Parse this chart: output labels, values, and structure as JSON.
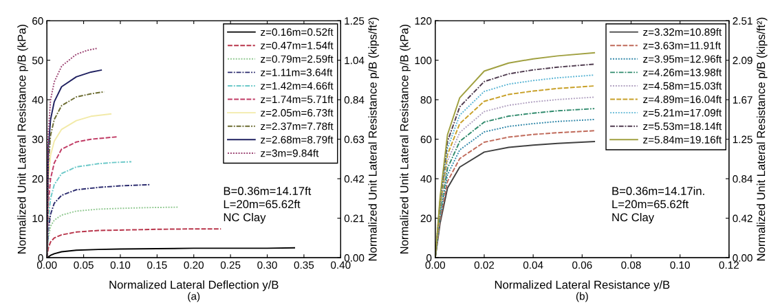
{
  "chart_data": [
    {
      "type": "line",
      "xlabel": "Normalized Lateral Deflection y/B",
      "ylabel": "Normalized Unit Lateral Resistance p/B (kPa)",
      "y2label": "Normalized Unit Lateral Resistance p/B (kips/ft²)",
      "xlim": [
        0,
        0.4
      ],
      "xticks": [
        {
          "value": 0,
          "label": "0.00"
        },
        {
          "value": 0.05,
          "label": "0.05"
        },
        {
          "value": 0.1,
          "label": "0.10"
        },
        {
          "value": 0.15,
          "label": "0.15"
        },
        {
          "value": 0.2,
          "label": "0.20"
        },
        {
          "value": 0.25,
          "label": "0.25"
        },
        {
          "value": 0.3,
          "label": "0.30"
        },
        {
          "value": 0.35,
          "label": "0.35"
        },
        {
          "value": 0.4,
          "label": "0.40"
        }
      ],
      "ylim": [
        0,
        60
      ],
      "yticks": [
        0,
        10,
        20,
        30,
        40,
        50,
        60
      ],
      "y2lim": [
        0,
        1.2531
      ],
      "y2ticks": [
        {
          "value": 0,
          "label": "0.00"
        },
        {
          "value": 0.2089,
          "label": "0.21"
        },
        {
          "value": 0.4177,
          "label": "0.42"
        },
        {
          "value": 0.6266,
          "label": "0.63"
        },
        {
          "value": 0.8354,
          "label": "0.84"
        },
        {
          "value": 1.0443,
          "label": "1.04"
        },
        {
          "value": 1.2531,
          "label": "1.25"
        }
      ],
      "grid": false,
      "legend": "top right",
      "annotations": [
        "B=0.36m=14.17ft\nL=20m=65.62ft\nNC Clay",
        "(a)"
      ],
      "series": [
        {
          "name": "z=0.16m=0.52ft",
          "color": "#000000",
          "line_style": "solid",
          "x": [
            0,
            0.005,
            0.01,
            0.02,
            0.04,
            0.07,
            0.1,
            0.15,
            0.2,
            0.25,
            0.3,
            0.337
          ],
          "values": [
            0,
            0.6,
            1.0,
            1.5,
            1.9,
            2.1,
            2.2,
            2.3,
            2.4,
            2.4,
            2.4,
            2.5
          ]
        },
        {
          "name": "z=0.47m=1.54ft",
          "color": "#b8344a",
          "line_style": "dashed",
          "x": [
            0,
            0.002,
            0.005,
            0.01,
            0.02,
            0.04,
            0.07,
            0.1,
            0.15,
            0.2,
            0.237
          ],
          "values": [
            0,
            2.5,
            4,
            5,
            5.8,
            6.5,
            6.9,
            7.0,
            7.2,
            7.3,
            7.3
          ]
        },
        {
          "name": "z=0.79m=2.59ft",
          "color": "#8fc88f",
          "line_style": "dotted",
          "x": [
            0,
            0.002,
            0.005,
            0.01,
            0.02,
            0.04,
            0.07,
            0.1,
            0.14,
            0.178
          ],
          "values": [
            0,
            5,
            8,
            9.5,
            10.8,
            11.8,
            12.3,
            12.5,
            12.7,
            12.8
          ]
        },
        {
          "name": "z=1.11m=3.64ft",
          "color": "#2b2b6e",
          "line_style": "dashdot",
          "x": [
            0,
            0.002,
            0.005,
            0.01,
            0.02,
            0.04,
            0.07,
            0.1,
            0.14
          ],
          "values": [
            0,
            7,
            11,
            13.8,
            15.8,
            17.2,
            17.8,
            18.2,
            18.5
          ]
        },
        {
          "name": "z=1.42m=4.66ft",
          "color": "#6ac8c8",
          "line_style": "dashdot",
          "x": [
            0,
            0.002,
            0.005,
            0.01,
            0.02,
            0.04,
            0.07,
            0.09,
            0.115
          ],
          "values": [
            0,
            10,
            15,
            18.5,
            21.3,
            23,
            23.8,
            24.1,
            24.3
          ]
        },
        {
          "name": "z=1.74m=5.71ft",
          "color": "#c03a64",
          "line_style": "dashed",
          "x": [
            0,
            0.002,
            0.005,
            0.01,
            0.02,
            0.04,
            0.06,
            0.095
          ],
          "values": [
            0,
            14,
            20,
            24,
            27.5,
            29.3,
            30,
            30.6
          ]
        },
        {
          "name": "z=2.05m=6.73ft",
          "color": "#f2eaa8",
          "line_style": "solid",
          "x": [
            0,
            0.002,
            0.005,
            0.01,
            0.02,
            0.04,
            0.06,
            0.087
          ],
          "values": [
            0,
            20,
            26,
            29.5,
            32.5,
            34.7,
            35.8,
            36.4
          ]
        },
        {
          "name": "z=2.37m=7.78ft",
          "color": "#6b6b30",
          "line_style": "dashdot",
          "x": [
            0,
            0.002,
            0.005,
            0.01,
            0.02,
            0.04,
            0.06,
            0.078
          ],
          "values": [
            0,
            24,
            31,
            35,
            38.5,
            40.7,
            41.5,
            42
          ]
        },
        {
          "name": "z=2.68m=8.79ft",
          "color": "#1f2060",
          "line_style": "solid",
          "x": [
            0,
            0.002,
            0.005,
            0.01,
            0.02,
            0.04,
            0.06,
            0.074
          ],
          "values": [
            0,
            28,
            35,
            39.5,
            43.3,
            45.8,
            47,
            47.5
          ]
        },
        {
          "name": "z=3m=9.84ft",
          "color": "#9a4070",
          "line_style": "dotted",
          "x": [
            0,
            0.002,
            0.005,
            0.01,
            0.02,
            0.04,
            0.055,
            0.068
          ],
          "values": [
            0,
            32,
            40,
            44.5,
            48.5,
            51.5,
            52.5,
            53
          ]
        }
      ]
    },
    {
      "type": "line",
      "xlabel": "Normalized Lateral Resistance y/B",
      "ylabel": "Normalized Unit Lateral Resistance p/B (kPa)",
      "y2label": "Normalized Unit Lateral Resistance p/B (kips/ft²)",
      "xlim": [
        0,
        0.12
      ],
      "xticks": [
        {
          "value": 0,
          "label": "0.00"
        },
        {
          "value": 0.02,
          "label": "0.02"
        },
        {
          "value": 0.04,
          "label": "0.04"
        },
        {
          "value": 0.06,
          "label": "0.06"
        },
        {
          "value": 0.08,
          "label": "0.08"
        },
        {
          "value": 0.1,
          "label": "0.10"
        },
        {
          "value": 0.12,
          "label": "0.12"
        }
      ],
      "ylim": [
        0,
        120
      ],
      "yticks": [
        0,
        20,
        40,
        60,
        80,
        100,
        120
      ],
      "y2lim": [
        0,
        2.5063
      ],
      "y2ticks": [
        {
          "value": 0,
          "label": "0.00"
        },
        {
          "value": 0.4177,
          "label": "0.42"
        },
        {
          "value": 0.8354,
          "label": "0.84"
        },
        {
          "value": 1.2531,
          "label": "1.25"
        },
        {
          "value": 1.6709,
          "label": "1.67"
        },
        {
          "value": 2.0886,
          "label": "2.09"
        },
        {
          "value": 2.5063,
          "label": "2.51"
        }
      ],
      "grid": false,
      "legend": "top right",
      "annotations": [
        "B=0.36m=14.17in.\nL=20m=65.62ft\nNC Clay",
        "(b)"
      ],
      "series": [
        {
          "name": "z=3.32m=10.89ft",
          "color": "#404040",
          "line_style": "solid",
          "x": [
            0,
            0.002,
            0.005,
            0.01,
            0.02,
            0.03,
            0.04,
            0.05,
            0.065
          ],
          "values": [
            0,
            17.6,
            35.3,
            45.9,
            53.5,
            55.9,
            57.0,
            57.9,
            58.8
          ]
        },
        {
          "name": "z=3.63m=11.91ft",
          "color": "#c06a5a",
          "line_style": "dashed",
          "x": [
            0,
            0.002,
            0.005,
            0.01,
            0.02,
            0.03,
            0.04,
            0.05,
            0.065
          ],
          "values": [
            0,
            19.3,
            38.6,
            50.2,
            58.5,
            61.1,
            62.4,
            63.3,
            64.3
          ]
        },
        {
          "name": "z=3.95m=12.96ft",
          "color": "#2e86a8",
          "line_style": "dotted",
          "x": [
            0,
            0.002,
            0.005,
            0.01,
            0.02,
            0.03,
            0.04,
            0.05,
            0.065
          ],
          "values": [
            0,
            21,
            42,
            54.6,
            63.7,
            66.5,
            67.9,
            69,
            70
          ]
        },
        {
          "name": "z=4.26m=13.98ft",
          "color": "#2f8a6c",
          "line_style": "dashdot",
          "x": [
            0,
            0.002,
            0.005,
            0.01,
            0.02,
            0.03,
            0.04,
            0.05,
            0.065
          ],
          "values": [
            0,
            22.7,
            45.3,
            58.9,
            68.7,
            71.7,
            73.2,
            74.4,
            75.5
          ]
        },
        {
          "name": "z=4.58m=15.03ft",
          "color": "#b0a0c0",
          "line_style": "dotted",
          "x": [
            0,
            0.002,
            0.005,
            0.01,
            0.02,
            0.03,
            0.04,
            0.05,
            0.065
          ],
          "values": [
            0,
            24.4,
            48.8,
            63.4,
            74,
            77.2,
            78.9,
            80.1,
            81.3
          ]
        },
        {
          "name": "z=4.89m=16.04ft",
          "color": "#c8a028",
          "line_style": "dashed",
          "x": [
            0,
            0.002,
            0.005,
            0.01,
            0.02,
            0.03,
            0.04,
            0.05,
            0.065
          ],
          "values": [
            0,
            26.1,
            52.2,
            67.9,
            79.2,
            82.7,
            84.4,
            85.7,
            87
          ]
        },
        {
          "name": "z=5.21m=17.09ft",
          "color": "#58b4d4",
          "line_style": "dotted",
          "x": [
            0,
            0.002,
            0.005,
            0.01,
            0.02,
            0.03,
            0.04,
            0.05,
            0.065
          ],
          "values": [
            0,
            27.8,
            55.5,
            72.2,
            84.2,
            87.9,
            89.7,
            91.1,
            92.5
          ]
        },
        {
          "name": "z=5.53m=18.14ft",
          "color": "#503c50",
          "line_style": "dashdot",
          "x": [
            0,
            0.002,
            0.005,
            0.01,
            0.02,
            0.03,
            0.04,
            0.05,
            0.065
          ],
          "values": [
            0,
            29.4,
            58.8,
            76.4,
            89.2,
            93.1,
            95.1,
            96.5,
            98
          ]
        },
        {
          "name": "z=5.84m=19.16ft",
          "color": "#a0a040",
          "line_style": "solid",
          "x": [
            0,
            0.002,
            0.005,
            0.01,
            0.02,
            0.03,
            0.04,
            0.05,
            0.065
          ],
          "values": [
            0,
            31.1,
            62.3,
            81,
            94.5,
            98.6,
            100.7,
            102.2,
            103.8
          ]
        }
      ]
    }
  ]
}
